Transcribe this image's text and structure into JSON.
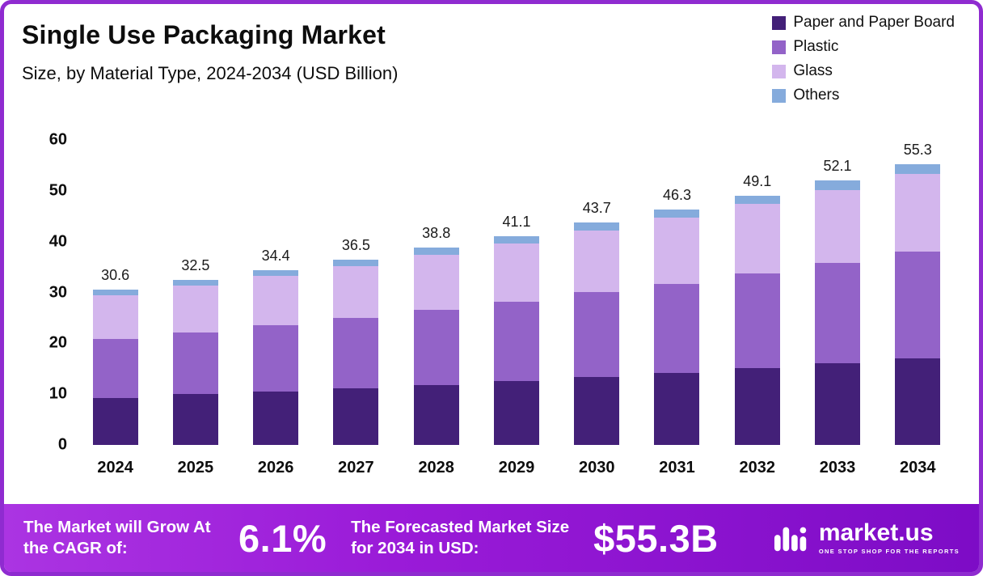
{
  "header": {
    "title": "Single Use Packaging Market",
    "subtitle": "Size, by Material Type, 2024-2034 (USD Billion)"
  },
  "legend": [
    {
      "label": "Paper and Paper Board",
      "color": "#432078"
    },
    {
      "label": "Plastic",
      "color": "#9363C8"
    },
    {
      "label": "Glass",
      "color": "#D3B6ED"
    },
    {
      "label": "Others",
      "color": "#85ABDC"
    }
  ],
  "chart_data": {
    "type": "bar",
    "stacked": true,
    "title": "Single Use Packaging Market",
    "subtitle": "Size, by Material Type, 2024-2034 (USD Billion)",
    "categories": [
      "2024",
      "2025",
      "2026",
      "2027",
      "2028",
      "2029",
      "2030",
      "2031",
      "2032",
      "2033",
      "2034"
    ],
    "series": [
      {
        "name": "Paper and Paper Board",
        "color": "#432078",
        "values": [
          9.3,
          10.0,
          10.5,
          11.2,
          11.8,
          12.6,
          13.3,
          14.2,
          15.1,
          16.0,
          17.0
        ]
      },
      {
        "name": "Plastic",
        "color": "#9363C8",
        "values": [
          11.5,
          12.2,
          13.0,
          13.8,
          14.8,
          15.6,
          16.7,
          17.5,
          18.6,
          19.8,
          21.0
        ]
      },
      {
        "name": "Glass",
        "color": "#D3B6ED",
        "values": [
          8.7,
          9.2,
          9.7,
          10.2,
          10.8,
          11.4,
          12.2,
          13.0,
          13.7,
          14.4,
          15.3
        ]
      },
      {
        "name": "Others",
        "color": "#85ABDC",
        "values": [
          1.1,
          1.1,
          1.2,
          1.3,
          1.4,
          1.5,
          1.5,
          1.6,
          1.7,
          1.9,
          2.0
        ]
      }
    ],
    "totals": [
      30.6,
      32.5,
      34.4,
      36.5,
      38.8,
      41.1,
      43.7,
      46.3,
      49.1,
      52.1,
      55.3
    ],
    "ylim": [
      0,
      60
    ],
    "yticks": [
      0,
      10,
      20,
      30,
      40,
      50,
      60
    ],
    "legend_position": "top-right",
    "grid": false
  },
  "footer": {
    "cagr_label": "The Market will Grow At the CAGR of:",
    "cagr_value": "6.1%",
    "forecast_label": "The Forecasted Market Size for 2034 in USD:",
    "forecast_value": "$55.3B",
    "brand": "market.us",
    "brand_tagline": "ONE STOP SHOP FOR THE REPORTS"
  },
  "colors": {
    "frame_border": "#8F2BD0",
    "banner_gradient_start": "#AB34E2",
    "banner_gradient_end": "#7D0CC6"
  }
}
